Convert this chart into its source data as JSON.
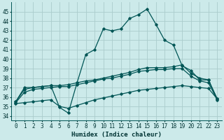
{
  "title": "",
  "xlabel": "Humidex (Indice chaleur)",
  "ylabel": "",
  "background_color": "#cceaea",
  "grid_color": "#aacccc",
  "line_color": "#005555",
  "xlim": [
    -0.5,
    23.5
  ],
  "ylim": [
    33.5,
    46.0
  ],
  "xticks": [
    0,
    1,
    2,
    3,
    4,
    5,
    6,
    7,
    8,
    9,
    10,
    11,
    12,
    13,
    14,
    15,
    16,
    17,
    18,
    19,
    20,
    21,
    22,
    23
  ],
  "yticks": [
    34,
    35,
    36,
    37,
    38,
    39,
    40,
    41,
    42,
    43,
    44,
    45
  ],
  "line1_x": [
    0,
    1,
    2,
    3,
    4,
    5,
    6,
    7,
    8,
    9,
    10,
    11,
    12,
    13,
    14,
    15,
    16,
    17,
    18,
    19,
    20,
    21,
    22,
    23
  ],
  "line1_y": [
    35.5,
    37.0,
    37.0,
    37.1,
    37.2,
    34.9,
    34.3,
    37.5,
    40.5,
    41.0,
    43.2,
    43.0,
    43.2,
    44.3,
    44.7,
    45.3,
    43.7,
    42.0,
    41.5,
    39.3,
    38.8,
    37.8,
    37.8,
    35.8
  ],
  "line2_x": [
    0,
    1,
    2,
    3,
    4,
    5,
    6,
    7,
    8,
    9,
    10,
    11,
    12,
    13,
    14,
    15,
    16,
    17,
    18,
    19,
    20,
    21,
    22,
    23
  ],
  "line2_y": [
    35.5,
    36.8,
    37.0,
    37.1,
    37.2,
    37.2,
    37.3,
    37.5,
    37.7,
    37.8,
    38.0,
    38.2,
    38.4,
    38.6,
    38.9,
    39.1,
    39.1,
    39.1,
    39.2,
    39.4,
    38.5,
    38.0,
    37.8,
    35.8
  ],
  "line3_x": [
    0,
    1,
    2,
    3,
    4,
    5,
    6,
    7,
    8,
    9,
    10,
    11,
    12,
    13,
    14,
    15,
    16,
    17,
    18,
    19,
    20,
    21,
    22,
    23
  ],
  "line3_y": [
    35.4,
    36.5,
    36.8,
    36.9,
    37.0,
    37.1,
    37.1,
    37.3,
    37.5,
    37.7,
    37.9,
    38.0,
    38.2,
    38.4,
    38.7,
    38.8,
    38.9,
    38.9,
    39.0,
    39.0,
    38.2,
    37.7,
    37.5,
    35.7
  ],
  "line4_x": [
    0,
    1,
    2,
    3,
    4,
    5,
    6,
    7,
    8,
    9,
    10,
    11,
    12,
    13,
    14,
    15,
    16,
    17,
    18,
    19,
    20,
    21,
    22,
    23
  ],
  "line4_y": [
    35.3,
    35.4,
    35.5,
    35.6,
    35.7,
    35.0,
    34.8,
    35.1,
    35.4,
    35.7,
    35.9,
    36.1,
    36.3,
    36.5,
    36.7,
    36.8,
    36.9,
    37.0,
    37.1,
    37.2,
    37.1,
    37.0,
    36.9,
    35.8
  ]
}
